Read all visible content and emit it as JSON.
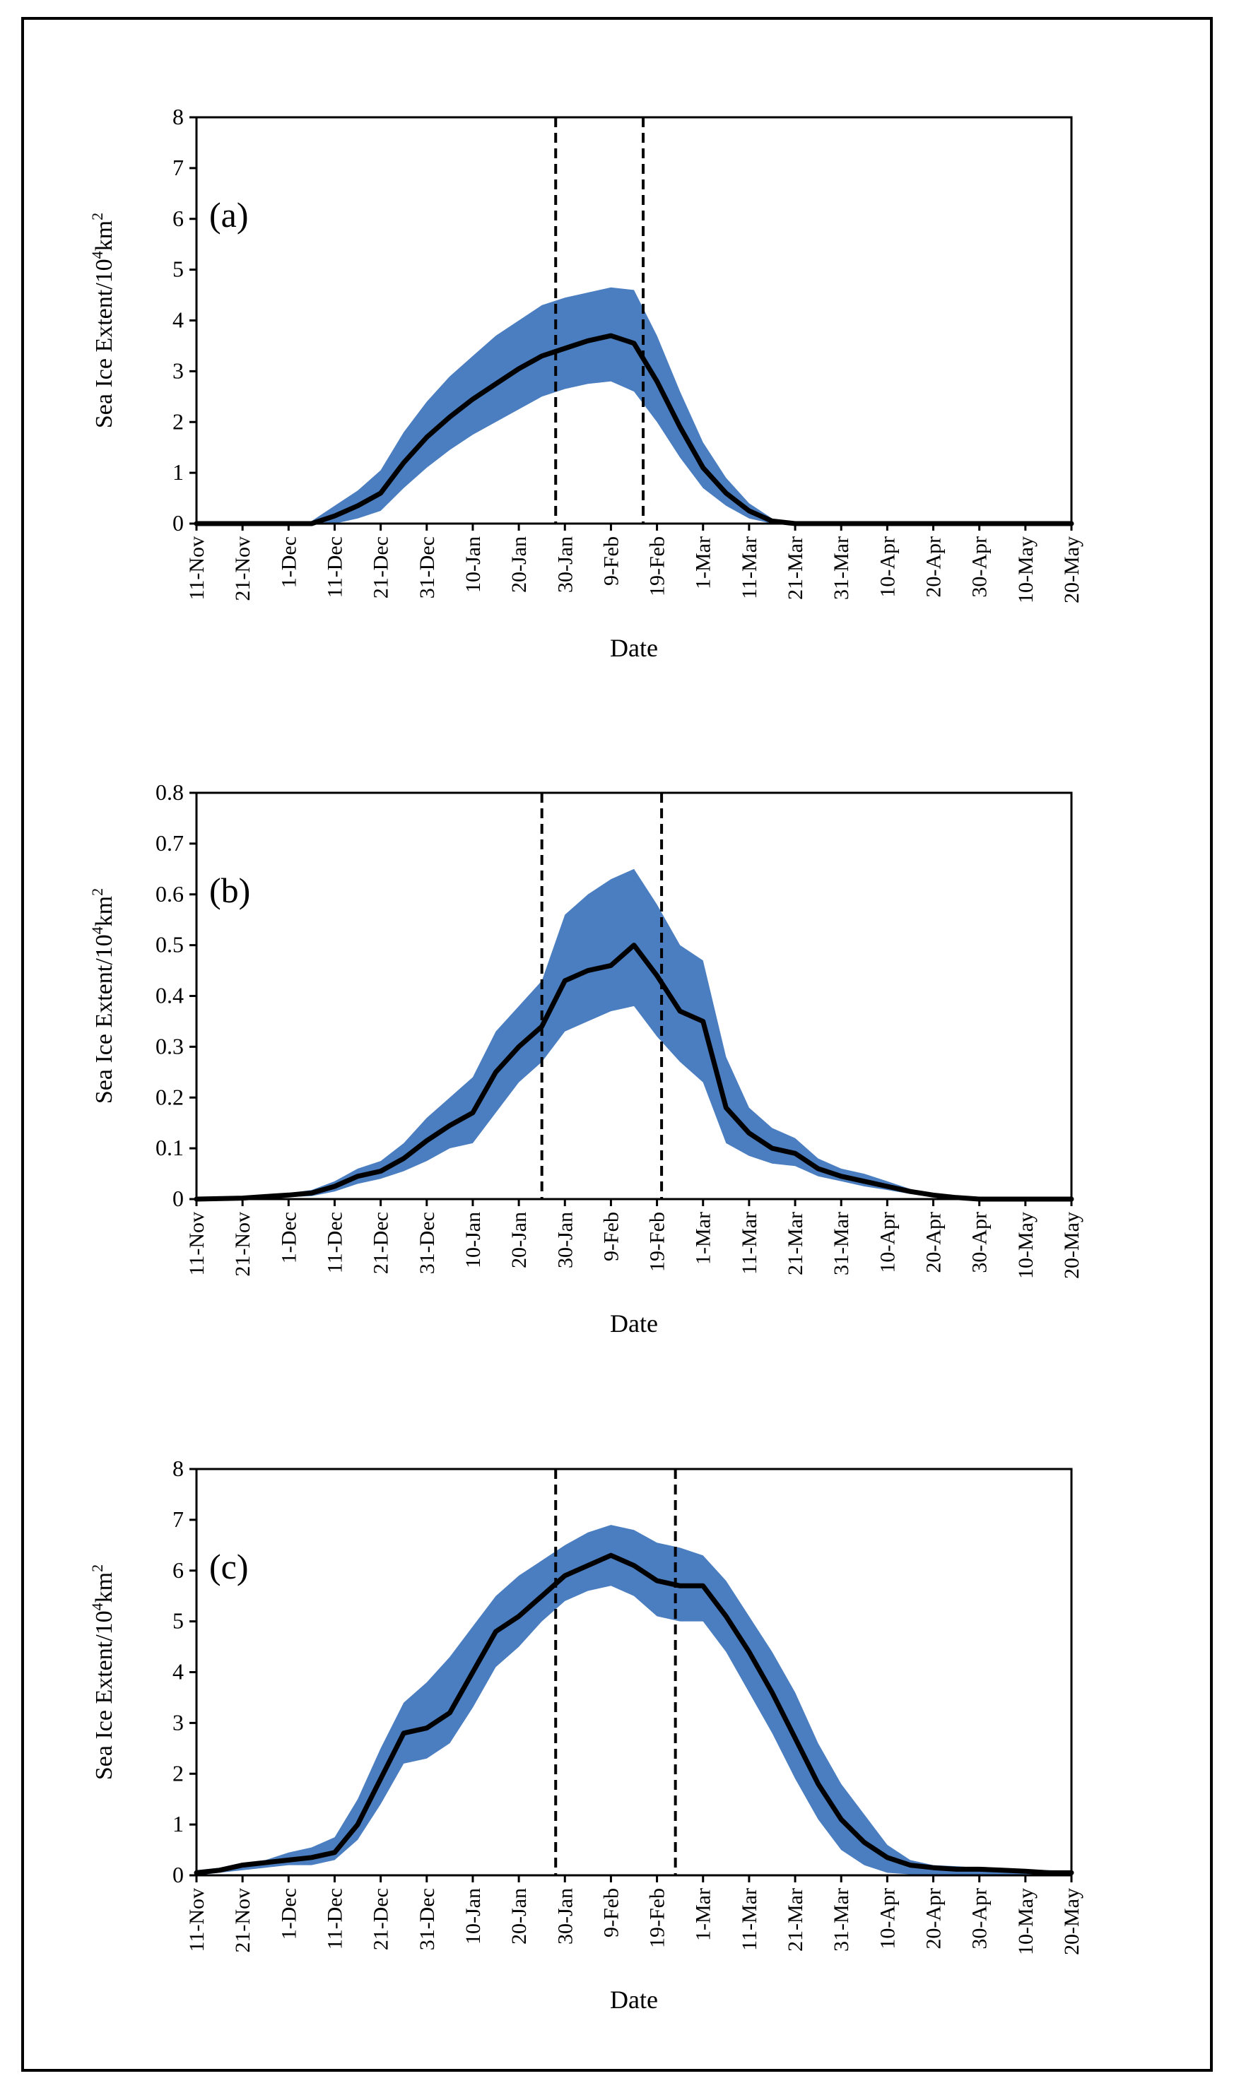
{
  "colors": {
    "band": "#4A7EC0",
    "line": "#000000",
    "axis": "#000000"
  },
  "chart_data": [
    {
      "type": "area",
      "panel_label": "(a)",
      "title": "",
      "xlabel": "Date",
      "ylabel_main": "Sea Ice Extent/10",
      "ylabel_sup1": "4",
      "ylabel_unit": "km",
      "ylabel_sup2": "2",
      "x_tick_labels": [
        "11-Nov",
        "21-Nov",
        "1-Dec",
        "11-Dec",
        "21-Dec",
        "31-Dec",
        "10-Jan",
        "20-Jan",
        "30-Jan",
        "9-Feb",
        "19-Feb",
        "1-Mar",
        "11-Mar",
        "21-Mar",
        "31-Mar",
        "10-Apr",
        "20-Apr",
        "30-Apr",
        "10-May",
        "20-May"
      ],
      "x_unit": "days since 11-Nov",
      "xlim": [
        0,
        190
      ],
      "ylim": [
        0,
        8
      ],
      "y_ticks": [
        0,
        1,
        2,
        3,
        4,
        5,
        6,
        7,
        8
      ],
      "y_tick_labels": [
        "0",
        "1",
        "2",
        "3",
        "4",
        "5",
        "6",
        "7",
        "8"
      ],
      "vlines": [
        78,
        97
      ],
      "series": [
        {
          "name": "mean",
          "x": [
            0,
            10,
            20,
            25,
            30,
            35,
            40,
            45,
            50,
            55,
            60,
            65,
            70,
            75,
            80,
            85,
            90,
            95,
            100,
            105,
            110,
            115,
            120,
            125,
            130,
            190
          ],
          "values": [
            0,
            0,
            0,
            0,
            0.15,
            0.35,
            0.6,
            1.2,
            1.7,
            2.1,
            2.45,
            2.75,
            3.05,
            3.3,
            3.45,
            3.6,
            3.7,
            3.55,
            2.8,
            1.9,
            1.1,
            0.6,
            0.25,
            0.05,
            0,
            0
          ]
        },
        {
          "name": "upper",
          "x": [
            0,
            10,
            20,
            25,
            30,
            35,
            40,
            45,
            50,
            55,
            60,
            65,
            70,
            75,
            80,
            85,
            90,
            95,
            100,
            105,
            110,
            115,
            120,
            125,
            130,
            190
          ],
          "values": [
            0,
            0,
            0,
            0.05,
            0.35,
            0.65,
            1.05,
            1.8,
            2.4,
            2.9,
            3.3,
            3.7,
            4.0,
            4.3,
            4.45,
            4.55,
            4.65,
            4.6,
            3.7,
            2.6,
            1.6,
            0.9,
            0.4,
            0.1,
            0,
            0
          ]
        },
        {
          "name": "lower",
          "x": [
            0,
            10,
            20,
            25,
            30,
            35,
            40,
            45,
            50,
            55,
            60,
            65,
            70,
            75,
            80,
            85,
            90,
            95,
            100,
            105,
            110,
            115,
            120,
            125,
            130,
            190
          ],
          "values": [
            0,
            0,
            0,
            0,
            0,
            0.1,
            0.25,
            0.7,
            1.1,
            1.45,
            1.75,
            2.0,
            2.25,
            2.5,
            2.65,
            2.75,
            2.8,
            2.6,
            2.0,
            1.3,
            0.7,
            0.35,
            0.1,
            0,
            0,
            0
          ]
        }
      ]
    },
    {
      "type": "area",
      "panel_label": "(b)",
      "title": "",
      "xlabel": "Date",
      "ylabel_main": "Sea Ice Extent/10",
      "ylabel_sup1": "4",
      "ylabel_unit": "km",
      "ylabel_sup2": "2",
      "x_tick_labels": [
        "11-Nov",
        "21-Nov",
        "1-Dec",
        "11-Dec",
        "21-Dec",
        "31-Dec",
        "10-Jan",
        "20-Jan",
        "30-Jan",
        "9-Feb",
        "19-Feb",
        "1-Mar",
        "11-Mar",
        "21-Mar",
        "31-Mar",
        "10-Apr",
        "20-Apr",
        "30-Apr",
        "10-May",
        "20-May"
      ],
      "x_unit": "days since 11-Nov",
      "xlim": [
        0,
        190
      ],
      "ylim": [
        0,
        0.8
      ],
      "y_ticks": [
        0,
        0.1,
        0.2,
        0.3,
        0.4,
        0.5,
        0.6,
        0.7,
        0.8
      ],
      "y_tick_labels": [
        "0",
        "0.1",
        "0.2",
        "0.3",
        "0.4",
        "0.5",
        "0.6",
        "0.7",
        "0.8"
      ],
      "vlines": [
        75,
        101
      ],
      "series": [
        {
          "name": "mean",
          "x": [
            0,
            10,
            15,
            20,
            25,
            30,
            35,
            40,
            45,
            50,
            55,
            60,
            65,
            70,
            75,
            80,
            85,
            90,
            95,
            100,
            105,
            110,
            115,
            120,
            125,
            130,
            135,
            140,
            145,
            150,
            155,
            160,
            165,
            170,
            190
          ],
          "values": [
            0,
            0.002,
            0.005,
            0.008,
            0.012,
            0.025,
            0.045,
            0.055,
            0.08,
            0.115,
            0.145,
            0.17,
            0.25,
            0.3,
            0.34,
            0.43,
            0.45,
            0.46,
            0.5,
            0.44,
            0.37,
            0.35,
            0.18,
            0.13,
            0.1,
            0.09,
            0.06,
            0.045,
            0.035,
            0.025,
            0.015,
            0.008,
            0.003,
            0,
            0
          ]
        },
        {
          "name": "upper",
          "x": [
            0,
            10,
            15,
            20,
            25,
            30,
            35,
            40,
            45,
            50,
            55,
            60,
            65,
            70,
            75,
            80,
            85,
            90,
            95,
            100,
            105,
            110,
            115,
            120,
            125,
            130,
            135,
            140,
            145,
            150,
            155,
            160,
            165,
            170,
            190
          ],
          "values": [
            0,
            0.005,
            0.008,
            0.012,
            0.018,
            0.035,
            0.06,
            0.075,
            0.11,
            0.16,
            0.2,
            0.24,
            0.33,
            0.38,
            0.43,
            0.56,
            0.6,
            0.63,
            0.65,
            0.58,
            0.5,
            0.47,
            0.28,
            0.18,
            0.14,
            0.12,
            0.08,
            0.06,
            0.05,
            0.035,
            0.02,
            0.01,
            0.005,
            0,
            0
          ]
        },
        {
          "name": "lower",
          "x": [
            0,
            10,
            15,
            20,
            25,
            30,
            35,
            40,
            45,
            50,
            55,
            60,
            65,
            70,
            75,
            80,
            85,
            90,
            95,
            100,
            105,
            110,
            115,
            120,
            125,
            130,
            135,
            140,
            145,
            150,
            155,
            160,
            165,
            170,
            190
          ],
          "values": [
            0,
            0,
            0.002,
            0.004,
            0.006,
            0.015,
            0.03,
            0.04,
            0.055,
            0.075,
            0.1,
            0.11,
            0.17,
            0.23,
            0.27,
            0.33,
            0.35,
            0.37,
            0.38,
            0.32,
            0.27,
            0.23,
            0.11,
            0.085,
            0.07,
            0.065,
            0.045,
            0.035,
            0.025,
            0.018,
            0.01,
            0.005,
            0.001,
            0,
            0
          ]
        }
      ]
    },
    {
      "type": "area",
      "panel_label": "(c)",
      "title": "",
      "xlabel": "Date",
      "ylabel_main": "Sea Ice Extent/10",
      "ylabel_sup1": "4",
      "ylabel_unit": "km",
      "ylabel_sup2": "2",
      "x_tick_labels": [
        "11-Nov",
        "21-Nov",
        "1-Dec",
        "11-Dec",
        "21-Dec",
        "31-Dec",
        "10-Jan",
        "20-Jan",
        "30-Jan",
        "9-Feb",
        "19-Feb",
        "1-Mar",
        "11-Mar",
        "21-Mar",
        "31-Mar",
        "10-Apr",
        "20-Apr",
        "30-Apr",
        "10-May",
        "20-May"
      ],
      "x_unit": "days since 11-Nov",
      "xlim": [
        0,
        190
      ],
      "ylim": [
        0,
        8
      ],
      "y_ticks": [
        0,
        1,
        2,
        3,
        4,
        5,
        6,
        7,
        8
      ],
      "y_tick_labels": [
        "0",
        "1",
        "2",
        "3",
        "4",
        "5",
        "6",
        "7",
        "8"
      ],
      "vlines": [
        78,
        104
      ],
      "series": [
        {
          "name": "mean",
          "x": [
            0,
            5,
            10,
            15,
            20,
            25,
            30,
            35,
            40,
            45,
            50,
            55,
            60,
            65,
            70,
            75,
            80,
            85,
            90,
            95,
            100,
            105,
            110,
            115,
            120,
            125,
            130,
            135,
            140,
            145,
            150,
            155,
            160,
            165,
            170,
            175,
            180,
            185,
            190
          ],
          "values": [
            0.05,
            0.1,
            0.2,
            0.25,
            0.3,
            0.35,
            0.45,
            1.0,
            1.9,
            2.8,
            2.9,
            3.2,
            4.0,
            4.8,
            5.1,
            5.5,
            5.9,
            6.1,
            6.3,
            6.1,
            5.8,
            5.7,
            5.7,
            5.1,
            4.4,
            3.6,
            2.7,
            1.8,
            1.1,
            0.65,
            0.35,
            0.2,
            0.15,
            0.12,
            0.12,
            0.1,
            0.08,
            0.05,
            0.05
          ]
        },
        {
          "name": "upper",
          "x": [
            0,
            5,
            10,
            15,
            20,
            25,
            30,
            35,
            40,
            45,
            50,
            55,
            60,
            65,
            70,
            75,
            80,
            85,
            90,
            95,
            100,
            105,
            110,
            115,
            120,
            125,
            130,
            135,
            140,
            145,
            150,
            155,
            160,
            165,
            170,
            175,
            180,
            185,
            190
          ],
          "values": [
            0.1,
            0.15,
            0.25,
            0.3,
            0.45,
            0.55,
            0.75,
            1.5,
            2.5,
            3.4,
            3.8,
            4.3,
            4.9,
            5.5,
            5.9,
            6.2,
            6.5,
            6.75,
            6.9,
            6.8,
            6.55,
            6.45,
            6.3,
            5.8,
            5.1,
            4.4,
            3.6,
            2.6,
            1.8,
            1.2,
            0.6,
            0.3,
            0.2,
            0.18,
            0.15,
            0.13,
            0.12,
            0.1,
            0.08
          ]
        },
        {
          "name": "lower",
          "x": [
            0,
            5,
            10,
            15,
            20,
            25,
            30,
            35,
            40,
            45,
            50,
            55,
            60,
            65,
            70,
            75,
            80,
            85,
            90,
            95,
            100,
            105,
            110,
            115,
            120,
            125,
            130,
            135,
            140,
            145,
            150,
            155,
            160,
            165,
            170,
            175,
            180,
            185,
            190
          ],
          "values": [
            0,
            0.05,
            0.1,
            0.15,
            0.2,
            0.2,
            0.3,
            0.7,
            1.4,
            2.2,
            2.3,
            2.6,
            3.3,
            4.1,
            4.5,
            5.0,
            5.4,
            5.6,
            5.7,
            5.5,
            5.1,
            5.0,
            5.0,
            4.4,
            3.6,
            2.8,
            1.9,
            1.1,
            0.5,
            0.2,
            0.05,
            0.02,
            0.02,
            0.02,
            0.02,
            0.02,
            0.02,
            0,
            0
          ]
        }
      ]
    }
  ]
}
